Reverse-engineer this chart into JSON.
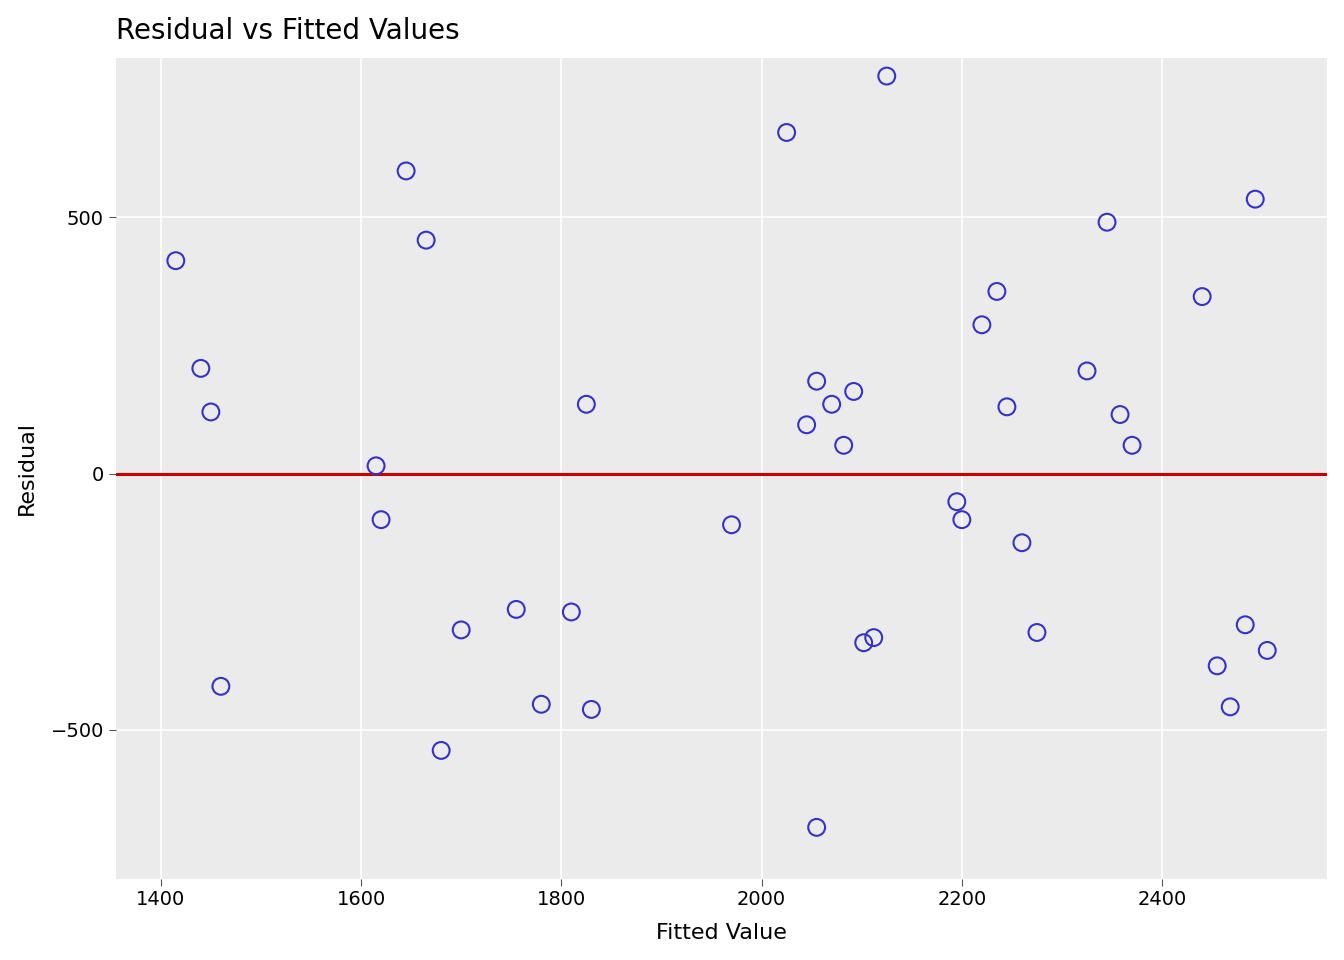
{
  "title": "Residual vs Fitted Values",
  "xlabel": "Fitted Value",
  "ylabel": "Residual",
  "xlim": [
    1355,
    2565
  ],
  "ylim": [
    -790,
    810
  ],
  "xticks": [
    1400,
    1600,
    1800,
    2000,
    2200,
    2400
  ],
  "yticks": [
    -500,
    0,
    500
  ],
  "background_color": "#EBEBEB",
  "fig_background_color": "#FFFFFF",
  "hline_color": "#CC0000",
  "point_color": "#3333CC",
  "point_facecolor": "none",
  "x_values": [
    1415,
    1440,
    1450,
    1460,
    1615,
    1620,
    1645,
    1665,
    1680,
    1700,
    1755,
    1780,
    1810,
    1825,
    1830,
    1970,
    2025,
    2045,
    2055,
    2070,
    2082,
    2092,
    2102,
    2112,
    2125,
    2055,
    2195,
    2200,
    2220,
    2235,
    2245,
    2260,
    2275,
    2325,
    2345,
    2358,
    2370,
    2440,
    2455,
    2468,
    2483,
    2493,
    2505
  ],
  "y_values": [
    415,
    205,
    120,
    -415,
    15,
    -90,
    590,
    455,
    -540,
    -305,
    -265,
    -450,
    -270,
    135,
    -460,
    -100,
    665,
    95,
    180,
    135,
    55,
    160,
    -330,
    -320,
    775,
    -690,
    -55,
    -90,
    290,
    355,
    130,
    -135,
    -310,
    200,
    490,
    115,
    55,
    345,
    -375,
    -455,
    -295,
    535,
    -345
  ],
  "title_fontsize": 20,
  "axis_label_fontsize": 16,
  "tick_fontsize": 14,
  "marker_size": 7,
  "marker_linewidth": 1.5,
  "hline_linewidth": 2.2,
  "grid_linewidth": 1.2,
  "grid_color": "#FFFFFF"
}
